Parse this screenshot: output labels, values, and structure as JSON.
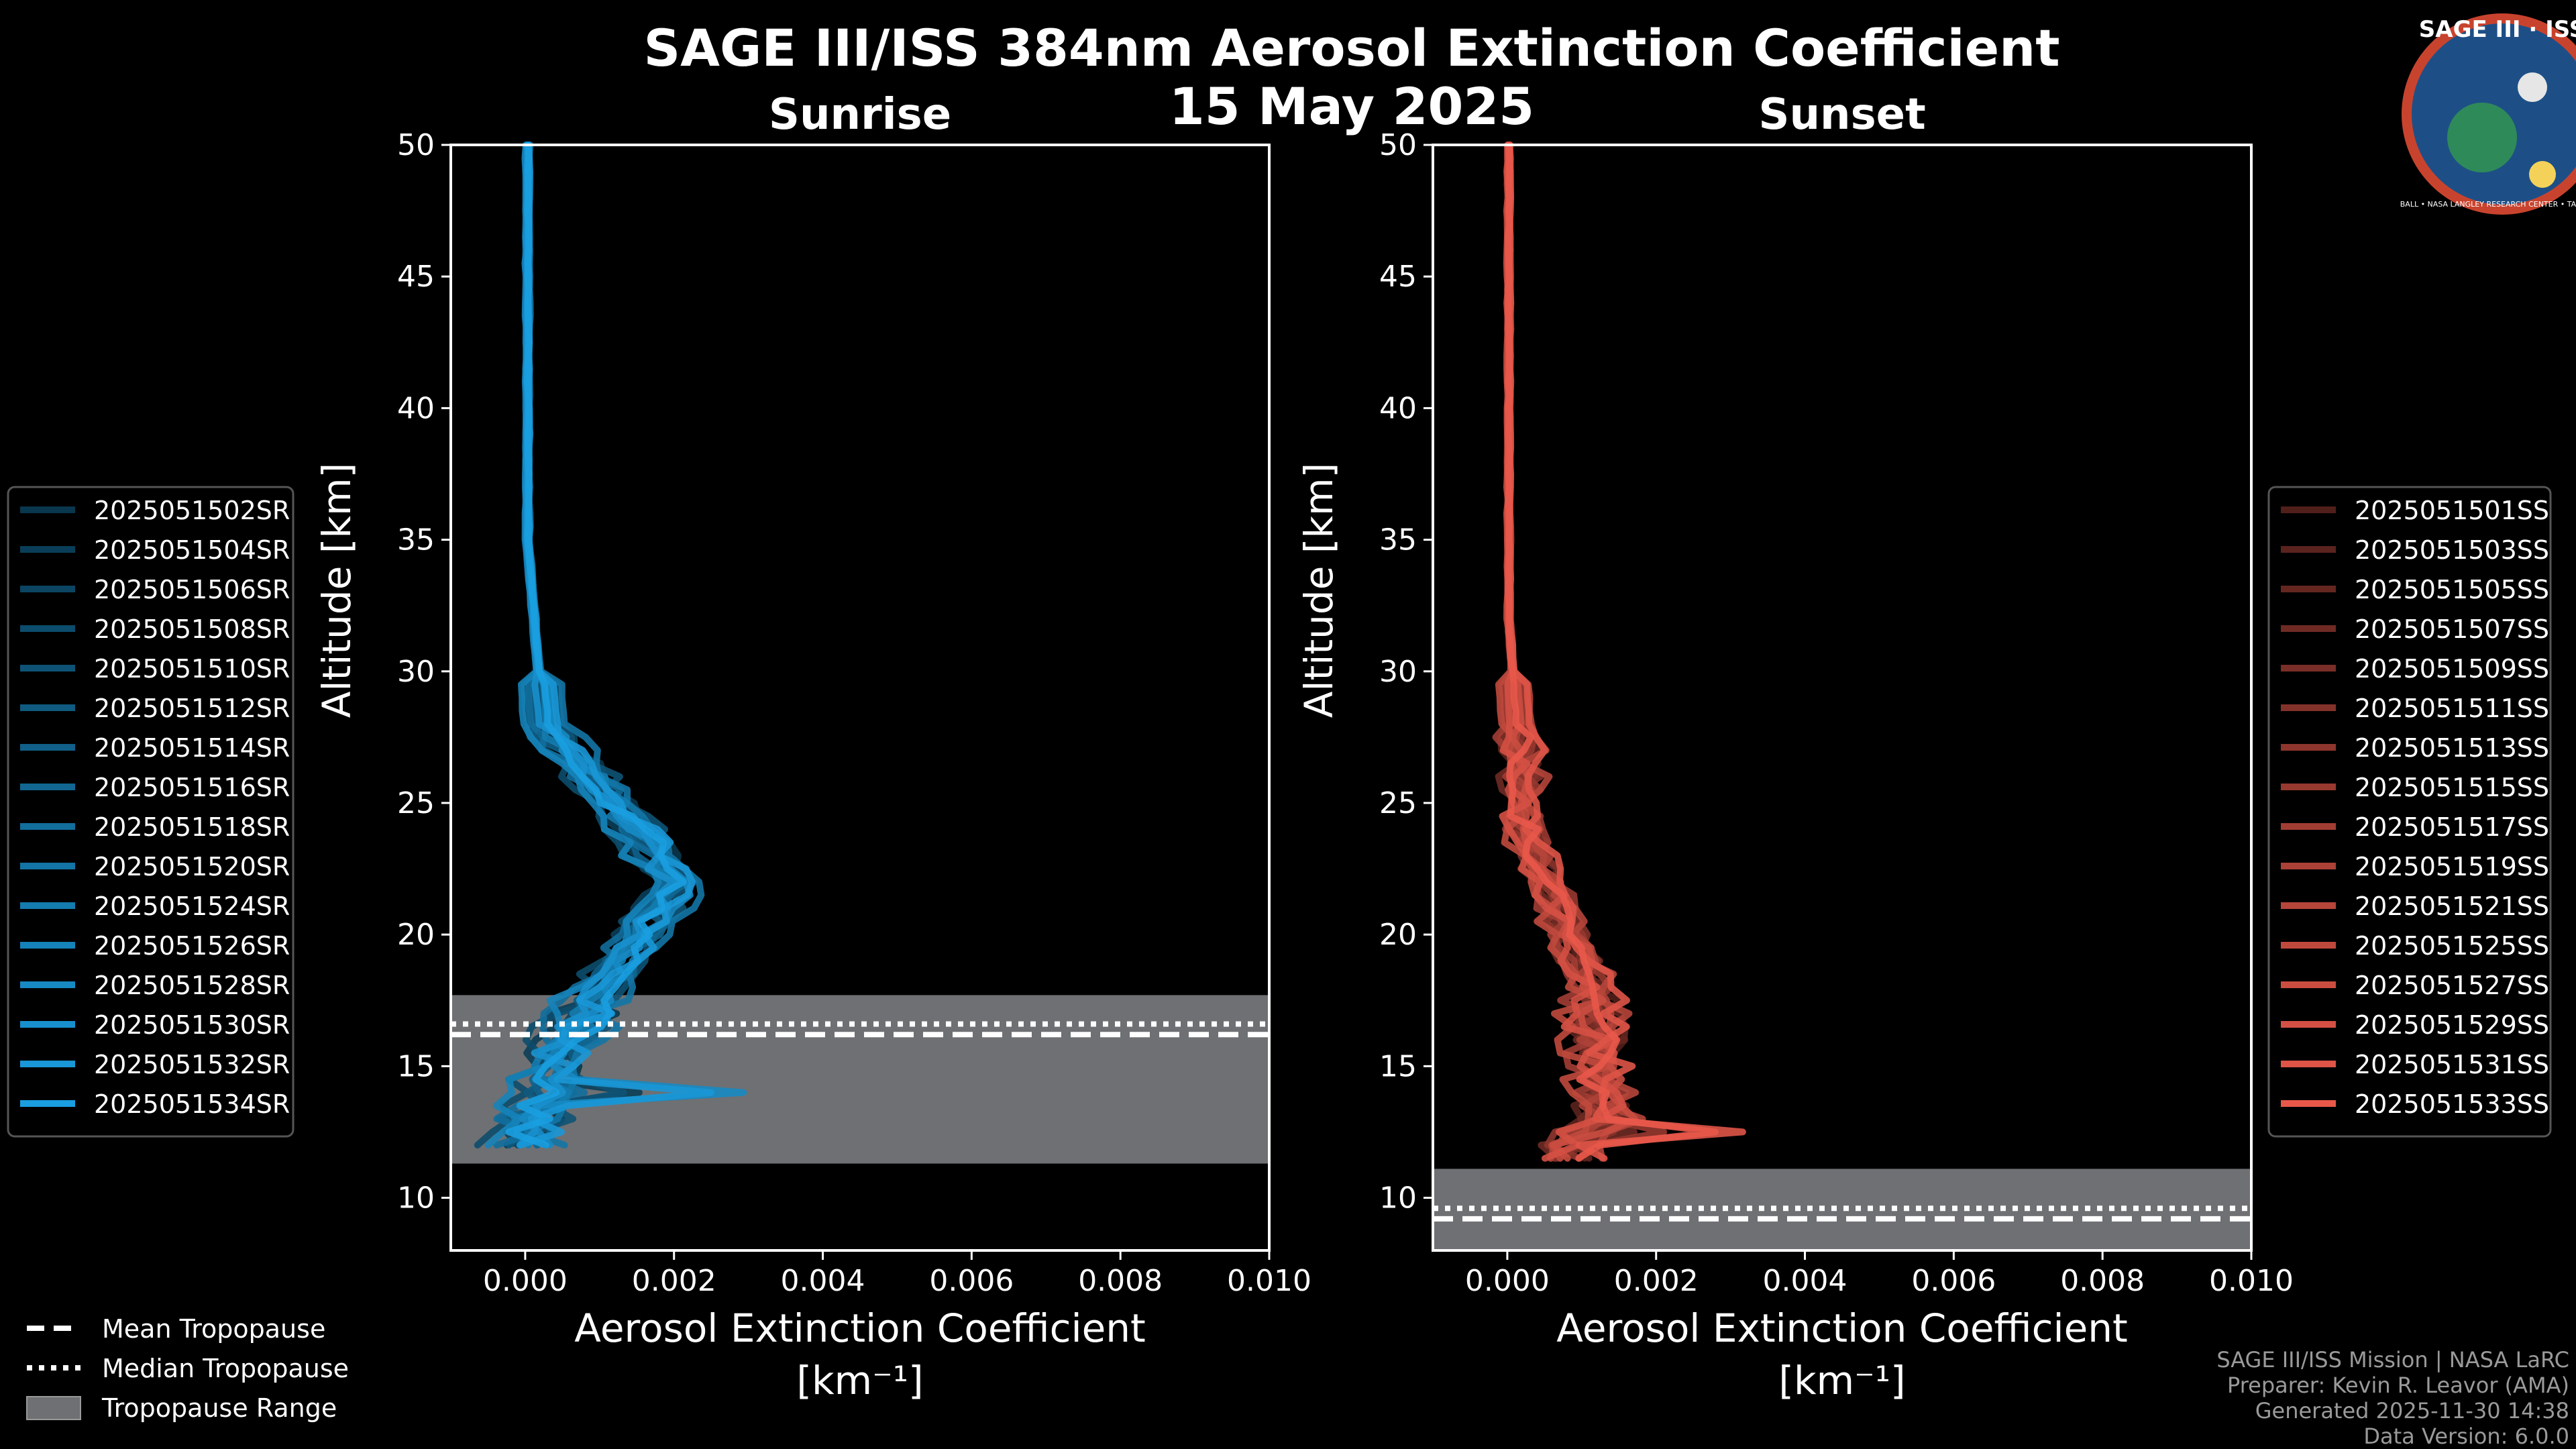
{
  "title_line1": "SAGE III/ISS 384nm Aerosol Extinction Coefficient",
  "title_line2": "15 May 2025",
  "logo": {
    "text": "SAGE III · ISS",
    "ring_text": "BALL • NASA LANGLEY RESEARCH CENTER • TAS • ESA"
  },
  "colors": {
    "sunrise": "#1a9ee0",
    "sunset": "#e8584a",
    "tropopause_band": "#6e7073",
    "background": "#000000"
  },
  "chart_data": [
    {
      "type": "line",
      "title": "Sunrise",
      "xlabel": "Aerosol Extinction Coefficient",
      "xunit": "[km⁻¹]",
      "ylabel": "Altitude [km]",
      "xlim": [
        -0.001,
        0.01
      ],
      "ylim": [
        8,
        50
      ],
      "xticks": [
        "0.000",
        "0.002",
        "0.004",
        "0.006",
        "0.008",
        "0.010"
      ],
      "xtick_values": [
        0,
        0.002,
        0.004,
        0.006,
        0.008,
        0.01
      ],
      "yticks": [
        "10",
        "15",
        "20",
        "25",
        "30",
        "35",
        "40",
        "45",
        "50"
      ],
      "ytick_values": [
        10,
        15,
        20,
        25,
        30,
        35,
        40,
        45,
        50
      ],
      "tropopause": {
        "mean": 16.2,
        "median": 16.6,
        "range": [
          11.3,
          17.7
        ]
      },
      "series": [
        {
          "name": "2025051502SR",
          "shift": 0.00018,
          "spike": 0.0
        },
        {
          "name": "2025051504SR",
          "shift": -0.00012,
          "spike": 0.0012
        },
        {
          "name": "2025051506SR",
          "shift": 0.0001,
          "spike": 0.0
        },
        {
          "name": "2025051508SR",
          "shift": -0.0002,
          "spike": 0.0
        },
        {
          "name": "2025051510SR",
          "shift": 0.00025,
          "spike": 0.0006
        },
        {
          "name": "2025051512SR",
          "shift": 0.0,
          "spike": 0.0
        },
        {
          "name": "2025051514SR",
          "shift": -8e-05,
          "spike": 0.0
        },
        {
          "name": "2025051516SR",
          "shift": 0.00015,
          "spike": 0.0
        },
        {
          "name": "2025051518SR",
          "shift": -0.00015,
          "spike": 0.0009
        },
        {
          "name": "2025051520SR",
          "shift": 0.0003,
          "spike": 0.0
        },
        {
          "name": "2025051524SR",
          "shift": 5e-05,
          "spike": 0.0
        },
        {
          "name": "2025051526SR",
          "shift": -0.00025,
          "spike": 0.0
        },
        {
          "name": "2025051528SR",
          "shift": 0.00012,
          "spike": 0.0025
        },
        {
          "name": "2025051530SR",
          "shift": -5e-05,
          "spike": 0.0
        },
        {
          "name": "2025051532SR",
          "shift": 0.0002,
          "spike": 0.0022
        },
        {
          "name": "2025051534SR",
          "shift": 8e-05,
          "spike": 0.0
        }
      ]
    },
    {
      "type": "line",
      "title": "Sunset",
      "xlabel": "Aerosol Extinction Coefficient",
      "xunit": "[km⁻¹]",
      "ylabel": "Altitude [km]",
      "xlim": [
        -0.001,
        0.01
      ],
      "ylim": [
        8,
        50
      ],
      "xticks": [
        "0.000",
        "0.002",
        "0.004",
        "0.006",
        "0.008",
        "0.010"
      ],
      "xtick_values": [
        0,
        0.002,
        0.004,
        0.006,
        0.008,
        0.01
      ],
      "yticks": [
        "10",
        "15",
        "20",
        "25",
        "30",
        "35",
        "40",
        "45",
        "50"
      ],
      "ytick_values": [
        10,
        15,
        20,
        25,
        30,
        35,
        40,
        45,
        50
      ],
      "tropopause": {
        "mean": 9.2,
        "median": 9.6,
        "range": [
          8,
          11.1
        ]
      },
      "series": [
        {
          "name": "2025051501SS",
          "shift": 8e-05,
          "spike": 0.0
        },
        {
          "name": "2025051503SS",
          "shift": -0.0001,
          "spike": 0.0
        },
        {
          "name": "2025051505SS",
          "shift": 0.00012,
          "spike": 0.0
        },
        {
          "name": "2025051507SS",
          "shift": -0.00015,
          "spike": 0.0008
        },
        {
          "name": "2025051509SS",
          "shift": 0.0,
          "spike": 0.0
        },
        {
          "name": "2025051511SS",
          "shift": 0.00015,
          "spike": 0.0
        },
        {
          "name": "2025051513SS",
          "shift": -5e-05,
          "spike": 0.0
        },
        {
          "name": "2025051515SS",
          "shift": 0.0001,
          "spike": 0.0012
        },
        {
          "name": "2025051517SS",
          "shift": -0.00012,
          "spike": 0.0
        },
        {
          "name": "2025051519SS",
          "shift": 5e-05,
          "spike": 0.0
        },
        {
          "name": "2025051521SS",
          "shift": 0.0002,
          "spike": 0.0
        },
        {
          "name": "2025051525SS",
          "shift": -0.0002,
          "spike": 0.0
        },
        {
          "name": "2025051527SS",
          "shift": 6e-05,
          "spike": 0.0006
        },
        {
          "name": "2025051529SS",
          "shift": -8e-05,
          "spike": 0.0
        },
        {
          "name": "2025051531SS",
          "shift": 0.00018,
          "spike": 0.0021
        },
        {
          "name": "2025051533SS",
          "shift": 0.0,
          "spike": 0.0018
        }
      ]
    }
  ],
  "tropopause_legend": [
    {
      "label": "Mean Tropopause",
      "style": "dashed"
    },
    {
      "label": "Median Tropopause",
      "style": "dotted"
    },
    {
      "label": "Tropopause Range",
      "style": "band"
    }
  ],
  "credits": [
    "SAGE III/ISS Mission | NASA LaRC",
    "Preparer: Kevin R. Leavor (AMA)",
    "Generated 2025-11-30 14:38",
    "Data Version: 6.0.0"
  ]
}
